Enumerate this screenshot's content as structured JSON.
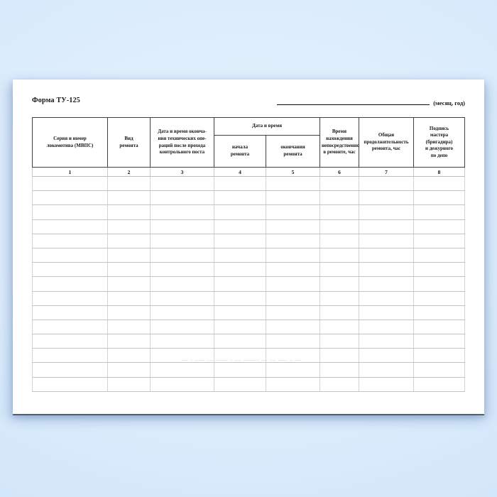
{
  "page": {
    "form_label": "Форма ТУ-125",
    "date_caption": "(месяц, год)",
    "watermark": "–– – ––– –– –––– – –– ––––– –– –– ––– – ––"
  },
  "table": {
    "group_header": "Дата и время",
    "columns": [
      {
        "label": "Серия и номер\nлокомотива (МВПС)",
        "num": "1"
      },
      {
        "label": "Вид\nремонта",
        "num": "2"
      },
      {
        "label": "Дата и время оконча-\nния технических опе-\nраций после прохода\nконтрольного поста",
        "num": "3"
      },
      {
        "label": "начала\nремонта",
        "num": "4"
      },
      {
        "label": "окончания\nремонта",
        "num": "5"
      },
      {
        "label": "Время\nнахождения\nнепосредственно\nв ремонте, час",
        "num": "6"
      },
      {
        "label": "Общая\nпродолжительность\nремонта, час",
        "num": "7"
      },
      {
        "label": "Подпись\nмастера\n(бригадира)\nи дежурного\nпо депо",
        "num": "8"
      }
    ],
    "body_row_count": 15,
    "body_cells_per_row": 8
  }
}
